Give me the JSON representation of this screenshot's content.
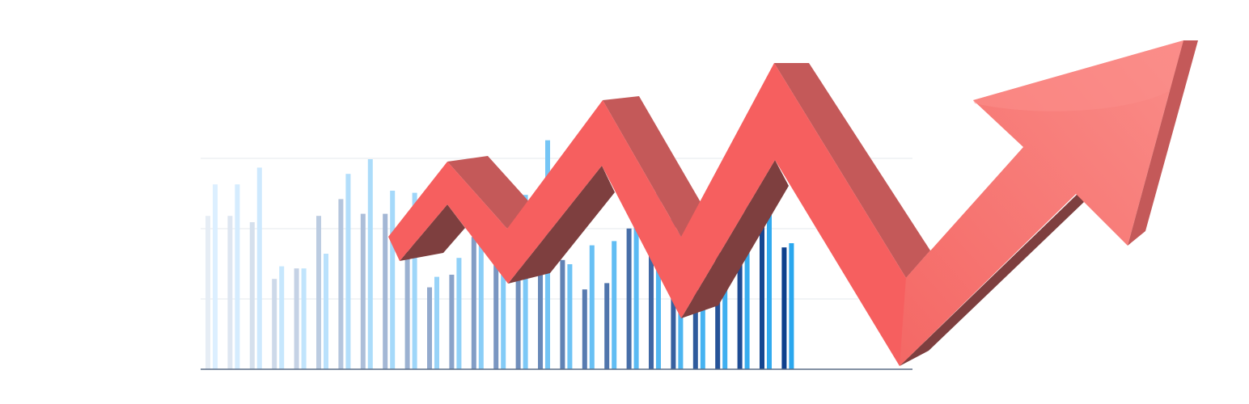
{
  "illustration": {
    "kind": "rising zigzag arrow over bar graph",
    "icon": "trend-up-arrow-icon",
    "colors": {
      "background": "#ffffff",
      "arrow_front": "#f65f5f",
      "arrow_top": "#c45959",
      "arrow_shadow": "#7e3f3f",
      "arrow_head": "#f77a77",
      "bar_dark_start": "#e6edf5",
      "bar_dark_end": "#0d3f8c",
      "bar_light_start": "#dcefff",
      "bar_light_end": "#2aa7ee",
      "gridline": "#e4e8ec"
    },
    "dark_bars": [
      0.73,
      0.73,
      0.7,
      0.43,
      0.48,
      0.73,
      0.81,
      0.74,
      0.74,
      0.56,
      0.39,
      0.45,
      0.63,
      0.59,
      0.69,
      0.45,
      0.52,
      0.38,
      0.41,
      0.67,
      0.66,
      0.76,
      0.55,
      0.67,
      0.67,
      0.7,
      0.58
    ],
    "light_bars": [
      0.88,
      0.88,
      0.96,
      0.49,
      0.48,
      0.55,
      0.93,
      1.0,
      0.85,
      0.84,
      0.44,
      0.53,
      0.65,
      0.74,
      0.83,
      1.09,
      0.5,
      0.59,
      0.61,
      0.72,
      0.91,
      0.85,
      0.41,
      0.58,
      0.91,
      0.76,
      0.6
    ]
  }
}
